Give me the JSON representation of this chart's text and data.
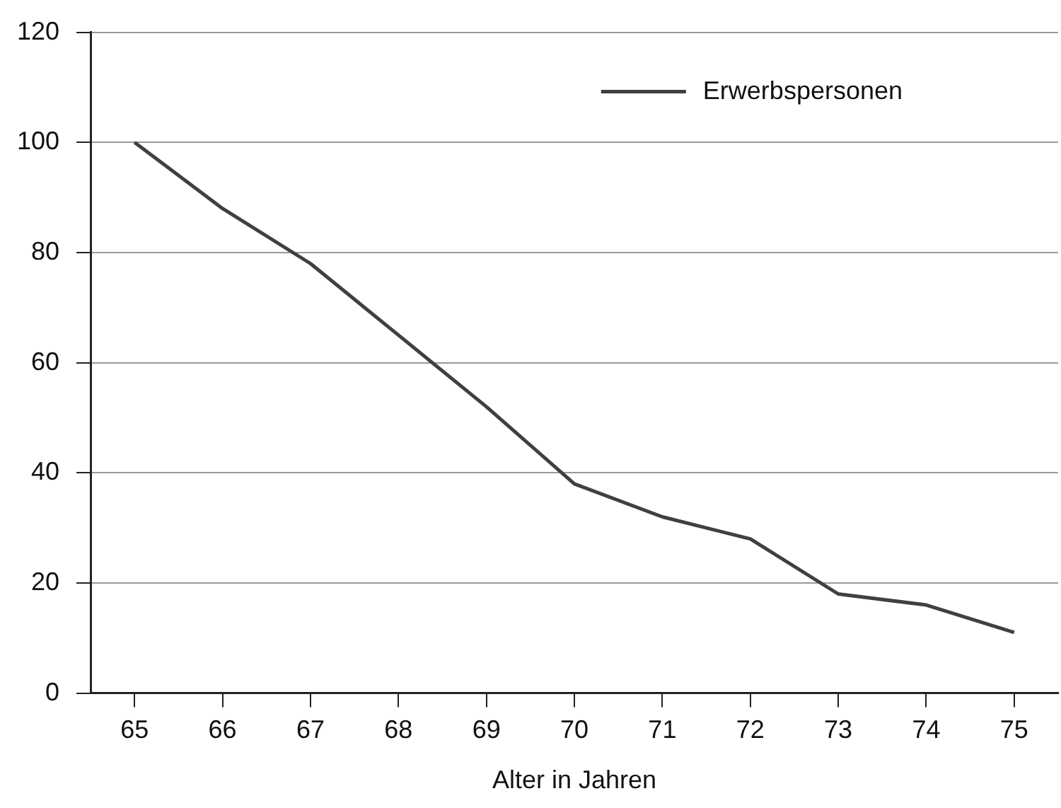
{
  "chart_data": {
    "type": "line",
    "xlabel": "Alter in Jahren",
    "categories": [
      "65",
      "66",
      "67",
      "68",
      "69",
      "70",
      "71",
      "72",
      "73",
      "74",
      "75"
    ],
    "series": [
      {
        "name": "Erwerbspersonen",
        "color": "#404040",
        "values": [
          100,
          88,
          78,
          65,
          52,
          38,
          32,
          28,
          18,
          16,
          11
        ]
      }
    ],
    "ylim": [
      0,
      120
    ],
    "yticks": [
      0,
      20,
      40,
      60,
      80,
      100,
      120
    ],
    "grid": "y",
    "legend": "top right",
    "marker": "none",
    "line_style": "solid"
  }
}
